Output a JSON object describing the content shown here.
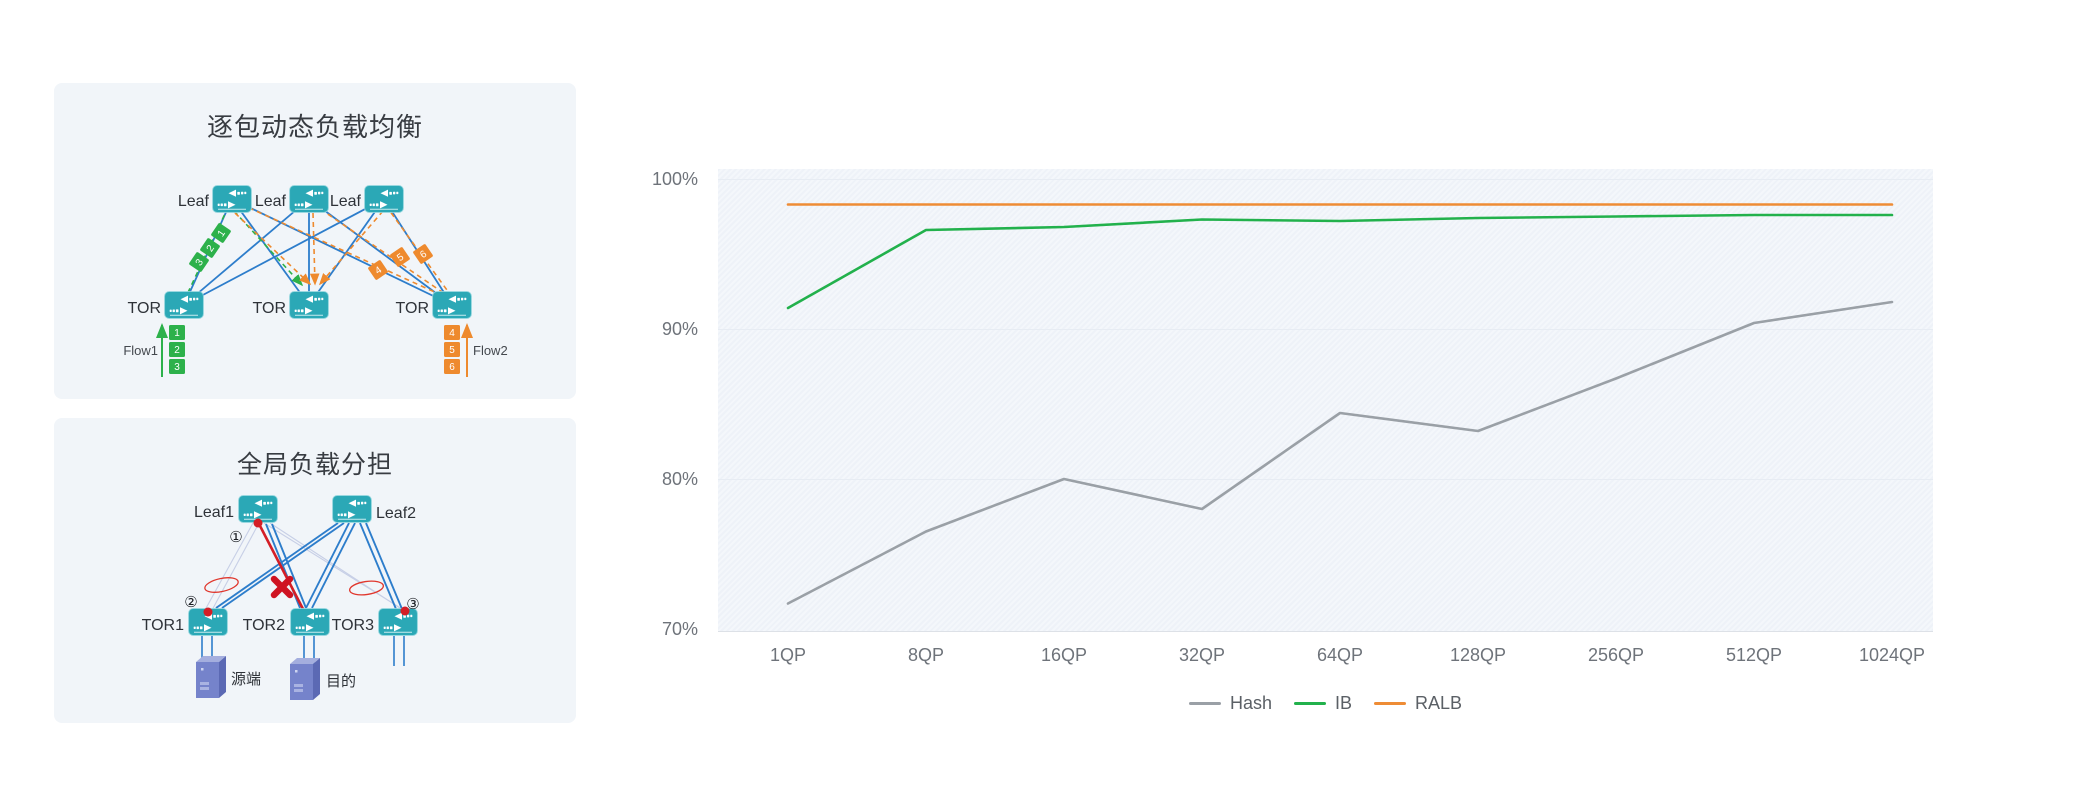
{
  "panel_packet_lb": {
    "title": "逐包动态负载均衡",
    "leaf_label": "Leaf",
    "tor_label": "TOR",
    "flow1": {
      "label": "Flow1",
      "packets": [
        "1",
        "2",
        "3"
      ],
      "color": "#2db14b"
    },
    "flow2": {
      "label": "Flow2",
      "packets": [
        "4",
        "5",
        "6"
      ],
      "color": "#ee8a2e"
    },
    "colors": {
      "link": "#2d7dcb",
      "switch": "#2ba8b6"
    }
  },
  "panel_global_lb": {
    "title": "全局负载分担",
    "leaf1_label": "Leaf1",
    "leaf2_label": "Leaf2",
    "tor1_label": "TOR1",
    "tor2_label": "TOR2",
    "tor3_label": "TOR3",
    "marker_1": "①",
    "marker_2": "②",
    "marker_3": "③",
    "source_label": "源端",
    "dest_label": "目的",
    "colors": {
      "fault": "#d41e26",
      "link": "#2d7dcb",
      "idle_link": "#c7cfe6"
    }
  },
  "chart_data": {
    "type": "line",
    "categories": [
      "1QP",
      "8QP",
      "16QP",
      "32QP",
      "64QP",
      "128QP",
      "256QP",
      "512QP",
      "1024QP"
    ],
    "series": [
      {
        "name": "Hash",
        "color": "#9aa0a6",
        "values": [
          71.7,
          76.5,
          80.0,
          78.0,
          84.4,
          83.2,
          86.7,
          90.4,
          91.8
        ]
      },
      {
        "name": "IB",
        "color": "#22b14c",
        "values": [
          91.4,
          96.6,
          96.8,
          97.3,
          97.2,
          97.4,
          97.5,
          97.6,
          97.6
        ]
      },
      {
        "name": "RALB",
        "color": "#ee8c35",
        "values": [
          98.3,
          98.3,
          98.3,
          98.3,
          98.3,
          98.3,
          98.3,
          98.3,
          98.3
        ]
      }
    ],
    "title": "",
    "xlabel": "",
    "ylabel": "",
    "ylim": [
      70,
      100
    ],
    "yticks": [
      {
        "value": 100,
        "label": "100%"
      },
      {
        "value": 90,
        "label": "90%"
      },
      {
        "value": 80,
        "label": "80%"
      },
      {
        "value": 70,
        "label": "70%"
      }
    ],
    "grid": "faint-horizontal",
    "legend_position": "bottom"
  }
}
